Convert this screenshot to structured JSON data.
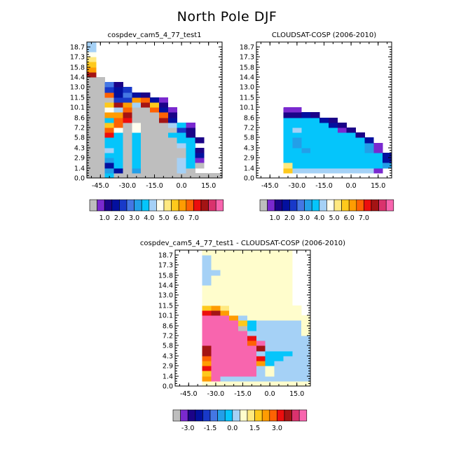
{
  "title": "North Pole DJF",
  "palettes": {
    "absolute": [
      "#bebebe",
      "#7a29cf",
      "#1b0388",
      "#03109f",
      "#1839c9",
      "#4477e4",
      "#239fe8",
      "#05c5fb",
      "#a5d1f6",
      "#fffff0",
      "#ffe980",
      "#fec91c",
      "#ff9c02",
      "#fe6203",
      "#ec0e0e",
      "#a41414",
      "#da326d",
      "#f865ae"
    ],
    "difference": [
      "#bebebe",
      "#7a29cf",
      "#1b0388",
      "#03109f",
      "#1839c9",
      "#4477e4",
      "#239fe8",
      "#05c5fb",
      "#a5d1f6",
      "#fffdcc",
      "#ffe980",
      "#fec91c",
      "#ff9c02",
      "#fe6203",
      "#ec0e0e",
      "#a41414",
      "#da326d",
      "#f865ae"
    ]
  },
  "chart_data": [
    {
      "id": "model",
      "type": "heatmap",
      "title": "cospdev_cam5_4_77_test1",
      "ylim": [
        0,
        19.4
      ],
      "xlim": [
        -52.5,
        22.5
      ],
      "yticks": [
        "0.0",
        "1.4",
        "2.9",
        "4.3",
        "5.8",
        "7.2",
        "8.6",
        "10.1",
        "11.5",
        "13.0",
        "14.4",
        "15.8",
        "17.3",
        "18.7"
      ],
      "xticks": [
        "-45.0",
        "-30.0",
        "-15.0",
        "0.0",
        "15.0"
      ],
      "x_columns": [
        -50,
        -45,
        -40,
        -35,
        -30,
        -25,
        -20,
        -15,
        -10,
        -5,
        0,
        5,
        10,
        15,
        20
      ],
      "y_rows_bottom_to_top": [
        "0.0",
        "0.7",
        "1.4",
        "2.2",
        "2.9",
        "3.6",
        "4.3",
        "5.0",
        "5.8",
        "6.5",
        "7.2",
        "7.9",
        "8.6",
        "9.4",
        "10.1",
        "10.8",
        "11.5",
        "12.2",
        "13.0",
        "13.7",
        "14.4",
        "15.1",
        "15.8",
        "16.6",
        "17.3",
        "18.0",
        "18.7"
      ],
      "cells_bottom_to_top": [
        "0G7GGGGGGGGGGGG",
        "GG63G6GGGG8G..",
        "GG37G7GGGG87G..",
        "GG67G7GGGG871..",
        "GG77G7GGGGG73..",
        "GG87G7GGGGG72...",
        "GG77G7GGGG87....",
        "GG77G7GGGG772...",
        "GGE7G7GGG772....",
        "GGD9G9GGGG42....",
        "GGBDG9GGG871....",
        "GG7DEGGGF3......",
        "GGCCFGGGD2......",
        "GG98DGGD31......",
        "GGBFC8FB2.......",
        "GGG44CD31.......",
        "GGD3532.........",
        "GG434...........",
        "GG52............",
        "GG..............",
        "F...............",
        "C...............",
        "B...............",
        "A...............",
        "9...............",
        "8...............",
        "8..............."
      ],
      "colorbar_labels": [
        "1.0",
        "2.0",
        "3.0",
        "4.0",
        "5.0",
        "6.0",
        "7.0"
      ]
    },
    {
      "id": "obs",
      "type": "heatmap",
      "title": "CLOUDSAT-COSP (2006-2010)",
      "ylim": [
        0,
        19.4
      ],
      "xlim": [
        -52.5,
        22.5
      ],
      "yticks": [
        "0.0",
        "1.4",
        "2.9",
        "4.3",
        "5.8",
        "7.2",
        "8.6",
        "10.1",
        "11.5",
        "13.0",
        "14.4",
        "15.8",
        "17.3",
        "18.7"
      ],
      "xticks": [
        "-45.0",
        "-30.0",
        "-15.0",
        "0.0",
        "15.0"
      ],
      "x_columns": [
        -50,
        -45,
        -40,
        -35,
        -30,
        -25,
        -20,
        -15,
        -10,
        -5,
        0,
        5,
        10,
        15,
        20
      ],
      "y_rows_bottom_to_top": [
        "0.0",
        "0.7",
        "1.4",
        "2.2",
        "2.9",
        "3.6",
        "4.3",
        "5.0",
        "5.8",
        "6.5",
        "7.2",
        "7.9",
        "8.6",
        "9.4",
        "10.1",
        "10.8",
        "11.5",
        "12.2",
        "13.0",
        "13.7",
        "14.4",
        "15.1",
        "15.8",
        "16.6",
        "17.3",
        "18.0",
        "18.7"
      ],
      "cells_bottom_to_top": [
        "WWWWWWWWWWWWWWW",
        "WWWB8888888881.",
        "WWWA777777777761.",
        "WWW7777777777731..",
        "WWW777777777773...",
        "WWW77677777761....",
        "WWW76777777761....",
        "WWW7677777773.....",
        "WWW777777772......",
        "WWW78777712.......",
        "WWW7777732........",
        "WWW777732.........",
        "WWW2232...........",
        "WWW11.............",
        "WWW...............",
        "WWW...............",
        "WWW...............",
        "WWW...............",
        "WWW...............",
        "WWW...............",
        "WWW...............",
        "WWW...............",
        "WWW...............",
        "WWW...............",
        "WWW...............",
        "WWW...............",
        "WWW..............."
      ],
      "colorbar_labels": [
        "1.0",
        "2.0",
        "3.0",
        "4.0",
        "5.0",
        "6.0",
        "7.0"
      ]
    },
    {
      "id": "diff",
      "type": "heatmap",
      "title": "cospdev_cam5_4_77_test1 - CLOUDSAT-COSP (2006-2010)",
      "ylim": [
        0,
        19.4
      ],
      "xlim": [
        -52.5,
        22.5
      ],
      "yticks": [
        "0.0",
        "1.4",
        "2.9",
        "4.3",
        "5.8",
        "7.2",
        "8.6",
        "10.1",
        "11.5",
        "13.0",
        "14.4",
        "15.8",
        "17.3",
        "18.7"
      ],
      "xticks": [
        "-45.0",
        "-30.0",
        "-15.0",
        "0.0",
        "15.0"
      ],
      "x_columns": [
        -50,
        -45,
        -40,
        -35,
        -30,
        -25,
        -20,
        -15,
        -10,
        -5,
        0,
        5,
        10,
        15,
        20
      ],
      "y_rows_bottom_to_top": [
        "0.0",
        "0.7",
        "1.4",
        "2.2",
        "2.9",
        "3.6",
        "4.3",
        "5.0",
        "5.8",
        "6.5",
        "7.2",
        "7.9",
        "8.6",
        "9.4",
        "10.1",
        "10.8",
        "11.5",
        "12.2",
        "13.0",
        "13.7",
        "14.4",
        "15.1",
        "15.8",
        "16.6",
        "17.3",
        "18.0",
        "18.7"
      ],
      "cells_bottom_to_top": [
        "WWW9999999999999",
        "WWWCH88888888888",
        "WWWBHHHHH89888888",
        "WWWEHHHHH89888888",
        "WWWCHHHHHC7888889",
        "WWWDHHHHHE7788899",
        "WWWFHHHHH8777889",
        "WWWFHHHHHF8888899",
        "WWWHHHHHDH888889",
        "WWWHHHHHE88888889",
        "WWWHHHHH8888889",
        "WWWHHHHG78888899",
        "WWWHHHHB7888889",
        "WWWHHHC89999999",
        "WWWEFC99999999",
        "WWWBCA99999999",
        "WWW9999999999",
        "WWW9999999999",
        "WWW9999999999",
        "WWW9999999999",
        "WWW8999999999",
        "WWW8999999999",
        "WWW8899999999",
        "WWW8999999999",
        "WWW8999999999",
        "WWW8999999999",
        "WWW9999999999"
      ],
      "colorbar_labels": [
        "-3.0",
        "-1.5",
        "0.0",
        "1.5",
        "3.0"
      ]
    }
  ]
}
